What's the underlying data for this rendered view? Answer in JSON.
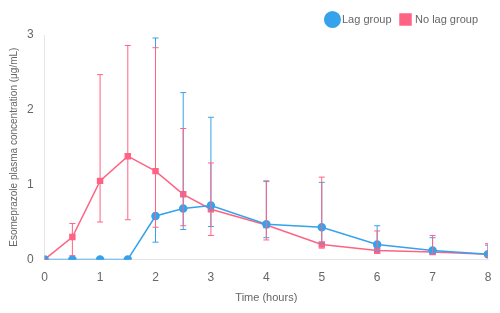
{
  "chart_data": {
    "type": "line",
    "xlabel": "Time (hours)",
    "ylabel": "Esomeprazole plasma concentration (μg/mL)",
    "x": [
      0,
      0.5,
      1.0,
      1.5,
      2.0,
      2.5,
      3.0,
      4.0,
      5.0,
      6.0,
      7.0,
      8.0
    ],
    "series": [
      {
        "name": "Lag group",
        "marker": "circle",
        "line_style": "solid",
        "values": [
          0.0,
          0.0,
          0.0,
          0.0,
          0.58,
          0.68,
          0.72,
          0.47,
          0.43,
          0.2,
          0.12,
          0.07
        ],
        "err_low": [
          0.0,
          0.0,
          0.0,
          0.0,
          0.35,
          0.28,
          0.28,
          0.18,
          0.22,
          0.09,
          0.05,
          0.04
        ],
        "err_high": [
          0.0,
          0.0,
          0.0,
          0.0,
          2.38,
          1.55,
          1.18,
          0.58,
          0.6,
          0.25,
          0.17,
          0.12
        ]
      },
      {
        "name": "No lag group",
        "marker": "square",
        "line_style": "solid",
        "values": [
          0.0,
          0.3,
          1.05,
          1.38,
          1.18,
          0.87,
          0.67,
          0.46,
          0.2,
          0.12,
          0.1,
          0.07
        ],
        "err_low": [
          0.0,
          0.25,
          0.55,
          0.85,
          0.75,
          0.42,
          0.35,
          0.2,
          0.05,
          0.04,
          0.03,
          0.03
        ],
        "err_high": [
          0.0,
          0.18,
          1.42,
          1.48,
          1.65,
          0.88,
          0.62,
          0.58,
          0.9,
          0.26,
          0.22,
          0.14
        ]
      }
    ],
    "xlim": [
      0,
      8
    ],
    "xticks": [
      0,
      1,
      2,
      3,
      4,
      5,
      6,
      7,
      8
    ],
    "ylim": [
      0,
      3
    ],
    "yticks": [
      0,
      1,
      2,
      3
    ],
    "grid": false,
    "legend": "upper right"
  }
}
